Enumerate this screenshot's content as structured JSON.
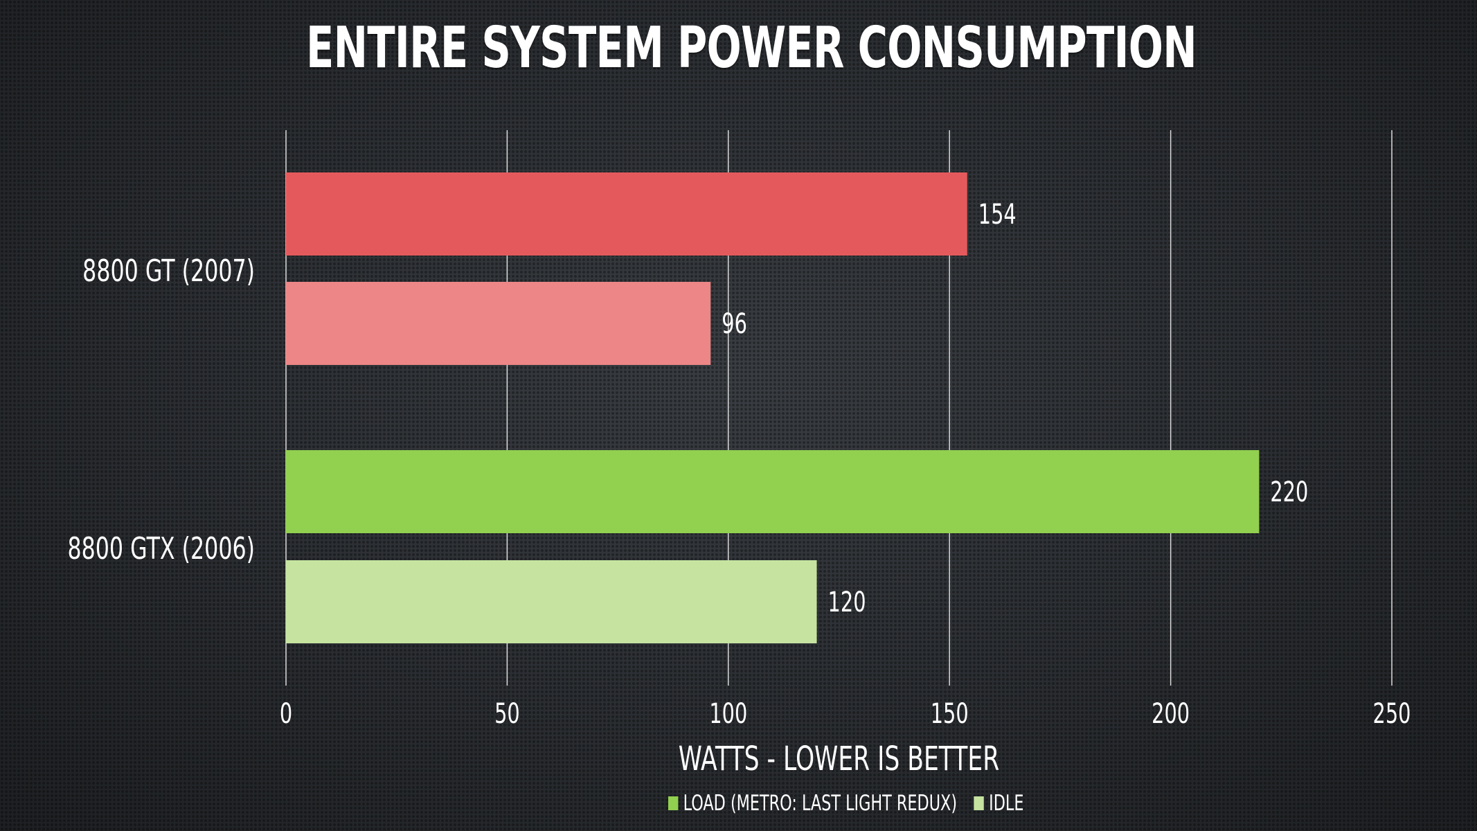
{
  "chart_data": {
    "type": "bar",
    "orientation": "horizontal",
    "title": "ENTIRE SYSTEM POWER CONSUMPTION",
    "xlabel": "WATTS - LOWER IS BETTER",
    "ylabel": "",
    "xlim": [
      0,
      250
    ],
    "xticks": [
      "0",
      "50",
      "100",
      "150",
      "200",
      "250"
    ],
    "grid": true,
    "legend_position": "bottom",
    "groups": [
      {
        "category": "8800 GT (2007)",
        "bars": [
          {
            "series": "LOAD (METRO: LAST LIGHT REDUX)",
            "value": 154,
            "label": "154",
            "color": "#e45a5c"
          },
          {
            "series": "IDLE",
            "value": 96,
            "label": "96",
            "color": "#ed8686"
          }
        ]
      },
      {
        "category": "8800 GTX (2006)",
        "bars": [
          {
            "series": "LOAD (METRO: LAST LIGHT REDUX)",
            "value": 220,
            "label": "220",
            "color": "#92d050"
          },
          {
            "series": "IDLE",
            "value": 120,
            "label": "120",
            "color": "#c6e4a0"
          }
        ]
      }
    ],
    "legend": [
      {
        "name": "LOAD (METRO: LAST LIGHT REDUX)",
        "color": "#92d050"
      },
      {
        "name": "IDLE",
        "color": "#c6e4a0"
      }
    ]
  }
}
